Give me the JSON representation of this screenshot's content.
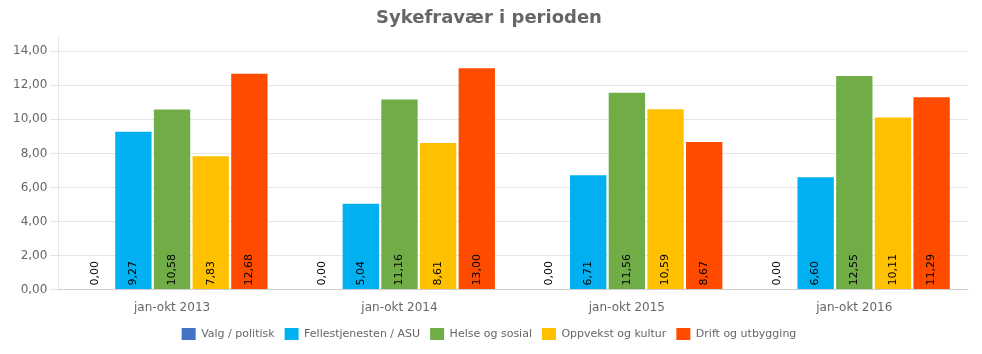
{
  "chart_data": {
    "type": "bar",
    "title": "Sykefravær i perioden",
    "categories": [
      "jan-okt 2013",
      "jan-okt 2014",
      "jan-okt 2015",
      "jan-okt 2016"
    ],
    "series": [
      {
        "name": "Valg / politisk",
        "color": "#4472C4",
        "values": [
          0,
          0,
          0,
          0
        ],
        "value_labels": [
          "0,00",
          "0,00",
          "0,00",
          "0,00"
        ]
      },
      {
        "name": "Fellestjenesten / ASU",
        "color": "#00B0F0",
        "values": [
          9.27,
          5.04,
          6.71,
          6.6
        ],
        "value_labels": [
          "9,27",
          "5,04",
          "6,71",
          "6,60"
        ]
      },
      {
        "name": "Helse og sosial",
        "color": "#70AD47",
        "values": [
          10.58,
          11.16,
          11.56,
          12.55
        ],
        "value_labels": [
          "10,58",
          "11,16",
          "11,56",
          "12,55"
        ]
      },
      {
        "name": "Oppvekst og kultur",
        "color": "#FFC000",
        "values": [
          7.83,
          8.61,
          10.59,
          10.11
        ],
        "value_labels": [
          "7,83",
          "8,61",
          "10,59",
          "10,11"
        ]
      },
      {
        "name": "Drift og utbygging",
        "color": "#FF4B00",
        "values": [
          12.68,
          13,
          8.67,
          11.29
        ],
        "value_labels": [
          "12,68",
          "13,00",
          "8,67",
          "11,29"
        ]
      }
    ],
    "ylim": [
      0,
      14.8
    ],
    "yticks": [
      {
        "value": 0,
        "label": "0,00"
      },
      {
        "value": 2,
        "label": "2,00"
      },
      {
        "value": 4,
        "label": "4,00"
      },
      {
        "value": 6,
        "label": "6,00"
      },
      {
        "value": 8,
        "label": "8,00"
      },
      {
        "value": 10,
        "label": "10,00"
      },
      {
        "value": 12,
        "label": "12,00"
      },
      {
        "value": 14,
        "label": "14,00"
      }
    ],
    "grid": true,
    "legend": "bottom",
    "data_labels": true
  }
}
